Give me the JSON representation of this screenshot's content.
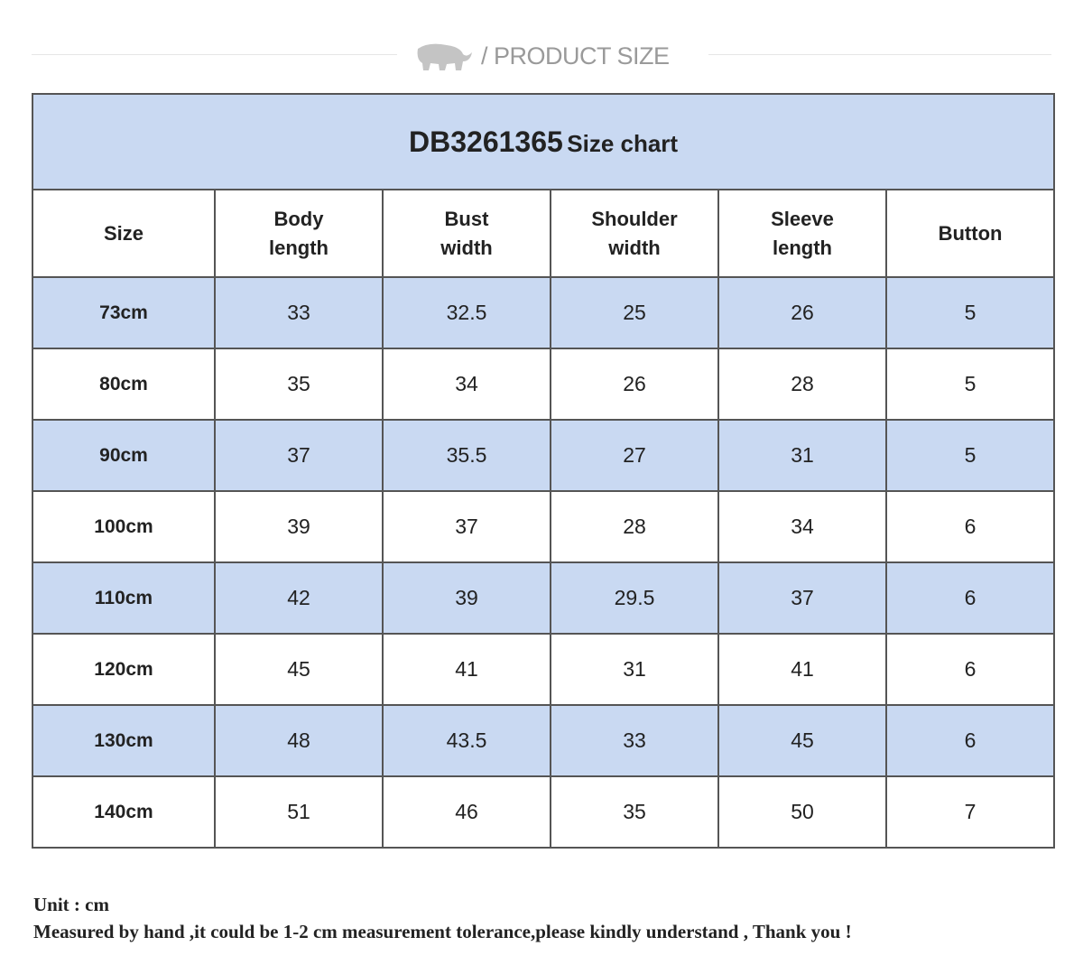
{
  "header": {
    "section_title": "/ PRODUCT SIZE"
  },
  "table": {
    "title_code": "DB3261365",
    "title_text": "Size chart",
    "columns": [
      "Size",
      "Body length",
      "Bust width",
      "Shoulder width",
      "Sleeve length",
      "Button"
    ],
    "rows": [
      [
        "73cm",
        33,
        32.5,
        25,
        26,
        5
      ],
      [
        "80cm",
        35,
        34,
        26,
        28,
        5
      ],
      [
        "90cm",
        37,
        35.5,
        27,
        31,
        5
      ],
      [
        "100cm",
        39,
        37,
        28,
        34,
        6
      ],
      [
        "110cm",
        42,
        39,
        29.5,
        37,
        6
      ],
      [
        "120cm",
        45,
        41,
        31,
        41,
        6
      ],
      [
        "130cm",
        48,
        43.5,
        33,
        45,
        6
      ],
      [
        "140cm",
        51,
        46,
        35,
        50,
        7
      ]
    ]
  },
  "notes": {
    "unit": "Unit : cm",
    "tolerance": "Measured by hand ,it could be 1-2 cm measurement tolerance,please kindly understand , Thank you !"
  }
}
